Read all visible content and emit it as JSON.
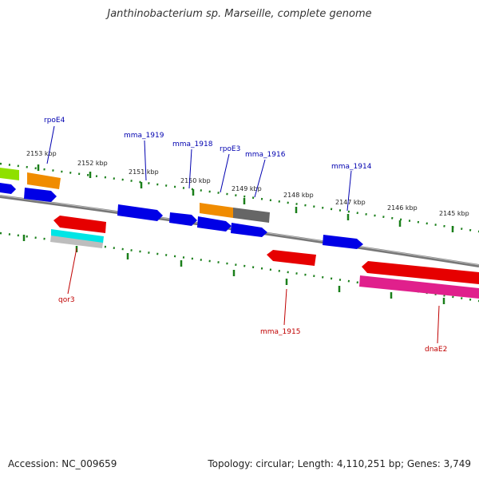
{
  "title": "Janthinobacterium sp. Marseille, complete genome",
  "footer": {
    "accession": "Accession: NC_009659",
    "summary": "Topology: circular; Length: 4,110,251 bp; Genes: 3,749"
  },
  "colors": {
    "backbone": "#888888",
    "tick": "#1a7f1a",
    "blue": "#0000e6",
    "red": "#e60000",
    "orange": "#f08c00",
    "gray": "#666666",
    "cyan": "#00e5e5",
    "lightgray": "#bdbdbd",
    "green": "#8fe000",
    "magenta": "#e0208c",
    "label_forward": "#0000b0",
    "label_reverse": "#c00000"
  },
  "scale_labels": [
    "2153 kbp",
    "2152 kbp",
    "2151 kbp",
    "2150 kbp",
    "2149 kbp",
    "2148 kbp",
    "2147 kbp",
    "2146 kbp",
    "2145 kbp"
  ],
  "gene_labels": {
    "forward": [
      "rpoE4",
      "mma_1919",
      "mma_1918",
      "rpoE3",
      "mma_1916",
      "mma_1914"
    ],
    "reverse": [
      "qor3",
      "mma_1915",
      "dnaE2"
    ]
  }
}
